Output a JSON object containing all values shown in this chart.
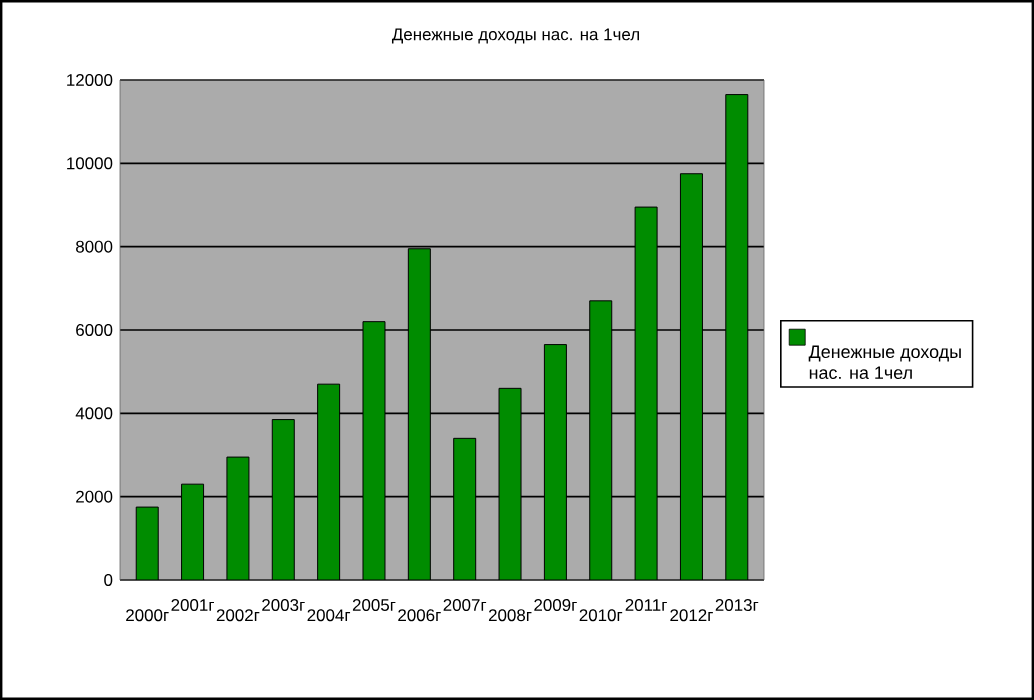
{
  "chart_data": {
    "type": "bar",
    "title": "Денежные доходы нас. на 1чел",
    "categories": [
      "2000г",
      "2001г",
      "2002г",
      "2003г",
      "2004г",
      "2005г",
      "2006г",
      "2007г",
      "2008г",
      "2009г",
      "2010г",
      "2011г",
      "2012г",
      "2013г"
    ],
    "series": [
      {
        "name": "Денежные доходы нас. на 1чел",
        "color": "#008c00",
        "values": [
          1750,
          2300,
          2950,
          3850,
          4700,
          6200,
          7950,
          3400,
          4600,
          5650,
          6700,
          8950,
          9750,
          11650
        ]
      }
    ],
    "ylim": [
      0,
      12000
    ],
    "yticks": [
      0,
      2000,
      4000,
      6000,
      8000,
      10000,
      12000
    ],
    "grid": "y",
    "legend": "right"
  }
}
